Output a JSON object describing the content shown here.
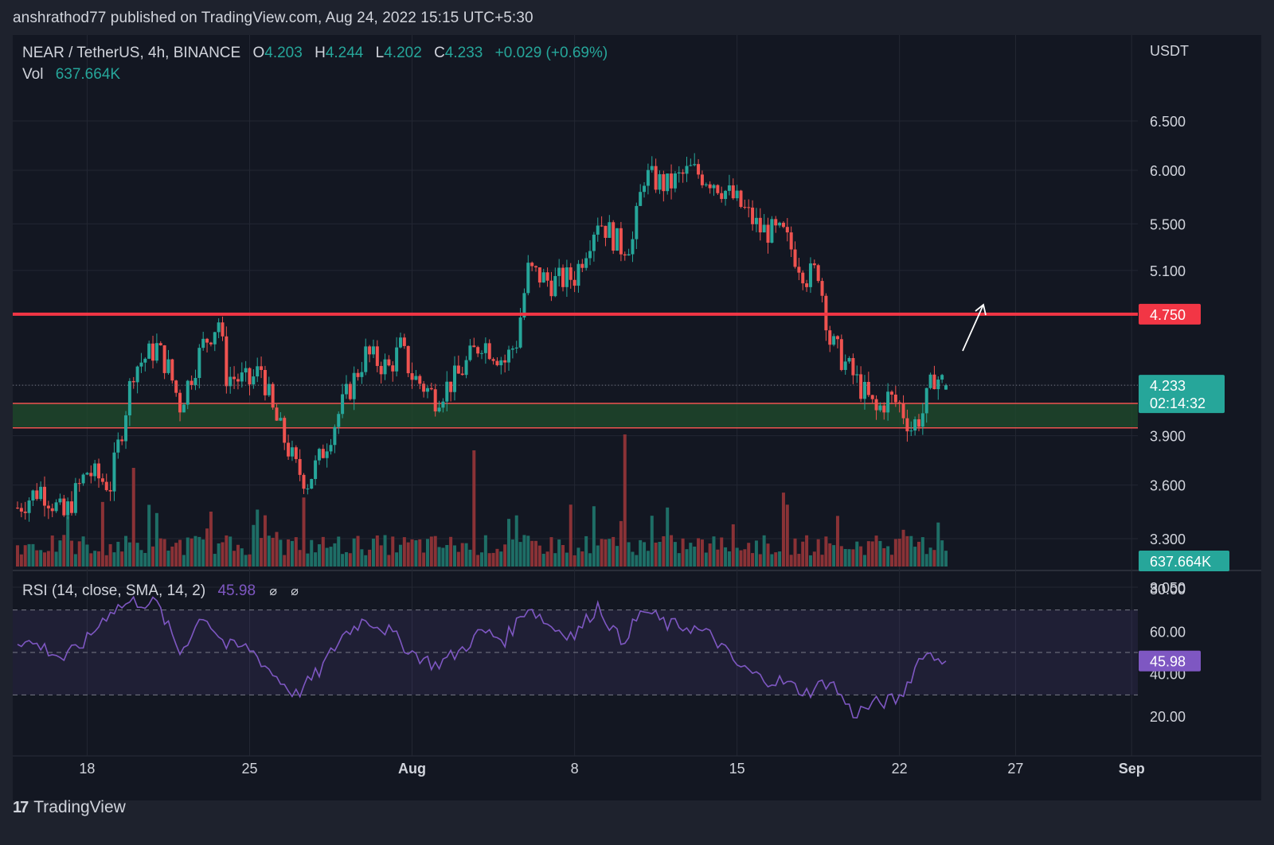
{
  "header": {
    "publisher": "anshrathod77 published on TradingView.com, Aug 24, 2022 15:15 UTC+5:30"
  },
  "legend": {
    "symbol": "NEAR / TetherUS, 4h, BINANCE",
    "o_label": "O",
    "o": "4.203",
    "h_label": "H",
    "h": "4.244",
    "l_label": "L",
    "l": "4.202",
    "c_label": "C",
    "c": "4.233",
    "change": "+0.029 (+0.69%)",
    "vol_label": "Vol",
    "vol": "637.664K"
  },
  "price_axis": {
    "currency": "USDT",
    "ticks": [
      "6.500",
      "6.000",
      "5.500",
      "5.100",
      "3.900",
      "3.600",
      "3.300",
      "3.050"
    ]
  },
  "markers": {
    "resistance": "4.750",
    "last_price": "4.233",
    "countdown": "02:14:32",
    "volume": "637.664K",
    "rsi": "45.98"
  },
  "rsi_panel": {
    "label": "RSI (14, close, SMA, 14, 2)",
    "value": "45.98",
    "icons": [
      "⌀",
      "⌀"
    ],
    "ticks": [
      "80.00",
      "60.00",
      "40.00",
      "20.00"
    ]
  },
  "time_axis": {
    "labels": [
      "18",
      "25",
      "Aug",
      "8",
      "15",
      "22",
      "27",
      "Sep"
    ]
  },
  "footer": {
    "brand": "TradingView"
  },
  "colors": {
    "up": "#26a69a",
    "down": "#ef5350",
    "resistance": "#f23645",
    "support_zone": "#1f4a2c",
    "rsi": "#7e57c2",
    "background": "#131722"
  },
  "chart_data": {
    "type": "candlestick",
    "symbol": "NEAR / TetherUS",
    "timeframe": "4h",
    "exchange": "BINANCE",
    "x_range": [
      "2022-07-15",
      "2022-09-01"
    ],
    "y_range": [
      2.9,
      7.0
    ],
    "y_scale": "log",
    "price_path": [
      [
        "2022-07-15",
        3.47
      ],
      [
        "2022-07-16",
        3.58
      ],
      [
        "2022-07-17",
        3.42
      ],
      [
        "2022-07-18",
        3.68
      ],
      [
        "2022-07-19",
        3.6
      ],
      [
        "2022-07-19T12",
        3.95
      ],
      [
        "2022-07-20",
        4.35
      ],
      [
        "2022-07-21",
        4.5
      ],
      [
        "2022-07-21T12",
        4.35
      ],
      [
        "2022-07-22",
        4.1
      ],
      [
        "2022-07-23",
        4.52
      ],
      [
        "2022-07-23T16",
        4.7
      ],
      [
        "2022-07-24",
        4.3
      ],
      [
        "2022-07-25",
        4.25
      ],
      [
        "2022-07-25T12",
        4.35
      ],
      [
        "2022-07-26",
        4.05
      ],
      [
        "2022-07-27",
        3.7
      ],
      [
        "2022-07-27T12",
        3.62
      ],
      [
        "2022-07-28",
        3.75
      ],
      [
        "2022-07-29",
        4.1
      ],
      [
        "2022-07-30",
        4.45
      ],
      [
        "2022-07-31",
        4.35
      ],
      [
        "2022-07-31T12",
        4.5
      ],
      [
        "2022-08-01",
        4.3
      ],
      [
        "2022-08-02",
        4.15
      ],
      [
        "2022-08-03",
        4.3
      ],
      [
        "2022-08-04",
        4.55
      ],
      [
        "2022-08-05",
        4.4
      ],
      [
        "2022-08-05T12",
        4.55
      ],
      [
        "2022-08-06",
        5.1
      ],
      [
        "2022-08-07",
        5.0
      ],
      [
        "2022-08-08",
        5.05
      ],
      [
        "2022-08-09",
        5.55
      ],
      [
        "2022-08-10",
        5.3
      ],
      [
        "2022-08-10T12",
        5.35
      ],
      [
        "2022-08-11",
        5.95
      ],
      [
        "2022-08-12",
        5.85
      ],
      [
        "2022-08-13",
        6.0
      ],
      [
        "2022-08-14",
        5.9
      ],
      [
        "2022-08-15",
        5.7
      ],
      [
        "2022-08-16",
        5.45
      ],
      [
        "2022-08-17",
        5.4
      ],
      [
        "2022-08-18",
        5.05
      ],
      [
        "2022-08-18T12",
        5.1
      ],
      [
        "2022-08-19",
        4.55
      ],
      [
        "2022-08-20",
        4.3
      ],
      [
        "2022-08-21",
        4.05
      ],
      [
        "2022-08-21T12",
        4.15
      ],
      [
        "2022-08-22",
        4.1
      ],
      [
        "2022-08-22T12",
        3.95
      ],
      [
        "2022-08-23",
        4.05
      ],
      [
        "2022-08-23T12",
        4.3
      ],
      [
        "2022-08-24",
        4.233
      ]
    ],
    "volume_bars": "per-candle volume histogram (last 637.664K)",
    "horizontal_levels": [
      {
        "type": "resistance",
        "price": 4.75
      },
      {
        "type": "support_zone",
        "from": 3.95,
        "to": 4.11
      }
    ],
    "annotation": "arrow pointing up toward 4.750 resistance",
    "rsi": {
      "length": 14,
      "source": "close",
      "ma": "SMA",
      "ma_length": 14,
      "last": 45.98,
      "bands": [
        70,
        50,
        30
      ],
      "y_range": [
        15,
        85
      ],
      "path": [
        [
          "2022-07-15",
          56
        ],
        [
          "2022-07-16",
          53
        ],
        [
          "2022-07-17",
          47
        ],
        [
          "2022-07-18",
          56
        ],
        [
          "2022-07-19",
          70
        ],
        [
          "2022-07-20",
          74
        ],
        [
          "2022-07-21",
          73
        ],
        [
          "2022-07-22",
          50
        ],
        [
          "2022-07-23",
          68
        ],
        [
          "2022-07-24",
          53
        ],
        [
          "2022-07-25",
          52
        ],
        [
          "2022-07-26",
          40
        ],
        [
          "2022-07-27",
          30
        ],
        [
          "2022-07-28",
          41
        ],
        [
          "2022-07-29",
          58
        ],
        [
          "2022-07-30",
          66
        ],
        [
          "2022-07-31",
          60
        ],
        [
          "2022-08-01",
          50
        ],
        [
          "2022-08-02",
          44
        ],
        [
          "2022-08-03",
          50
        ],
        [
          "2022-08-04",
          60
        ],
        [
          "2022-08-05",
          56
        ],
        [
          "2022-08-06",
          72
        ],
        [
          "2022-08-07",
          62
        ],
        [
          "2022-08-08",
          58
        ],
        [
          "2022-08-09",
          72
        ],
        [
          "2022-08-10",
          55
        ],
        [
          "2022-08-11",
          70
        ],
        [
          "2022-08-12",
          63
        ],
        [
          "2022-08-13",
          62
        ],
        [
          "2022-08-14",
          57
        ],
        [
          "2022-08-15",
          44
        ],
        [
          "2022-08-16",
          38
        ],
        [
          "2022-08-17",
          36
        ],
        [
          "2022-08-18",
          31
        ],
        [
          "2022-08-19",
          37
        ],
        [
          "2022-08-20",
          21
        ],
        [
          "2022-08-21",
          26
        ],
        [
          "2022-08-22",
          28
        ],
        [
          "2022-08-23",
          50
        ],
        [
          "2022-08-24",
          45.98
        ]
      ]
    }
  }
}
